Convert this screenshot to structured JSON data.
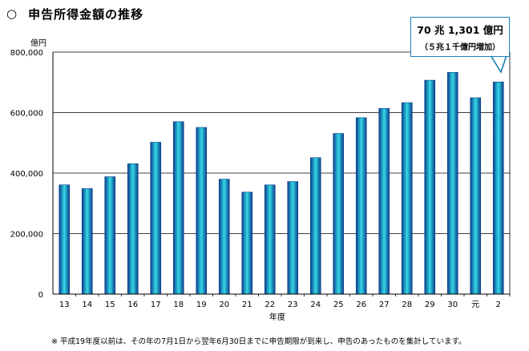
{
  "heading": {
    "bullet": "○",
    "title": "申告所得金額の推移"
  },
  "chart_data": {
    "type": "bar",
    "title": "申告所得金額の推移",
    "unit_label": "億円",
    "xlabel": "年度",
    "ylabel": "",
    "ylim": [
      0,
      800000
    ],
    "yticks": [
      0,
      200000,
      400000,
      600000,
      800000
    ],
    "ytick_labels": [
      "0",
      "200,000",
      "400,000",
      "600,000",
      "800,000"
    ],
    "grid": true,
    "categories": [
      "13",
      "14",
      "15",
      "16",
      "17",
      "18",
      "19",
      "20",
      "21",
      "22",
      "23",
      "24",
      "25",
      "26",
      "27",
      "28",
      "29",
      "30",
      "元",
      "2"
    ],
    "values": [
      361000,
      349000,
      388000,
      431000,
      502000,
      570000,
      551000,
      380000,
      337000,
      361000,
      372000,
      451000,
      531000,
      583000,
      614000,
      633000,
      707000,
      733000,
      649000,
      701301
    ],
    "bar_color_edge": "#0b3f8c",
    "bar_color_mid": "#33d8e6",
    "callout": {
      "line1": "70 兆 1,301 億円",
      "line2": "（５兆１千億円増加）"
    }
  },
  "note": "※  平成19年度以前は、その年の7月1日から翌年6月30日までに申告期限が到来し、申告のあったものを集計しています。"
}
